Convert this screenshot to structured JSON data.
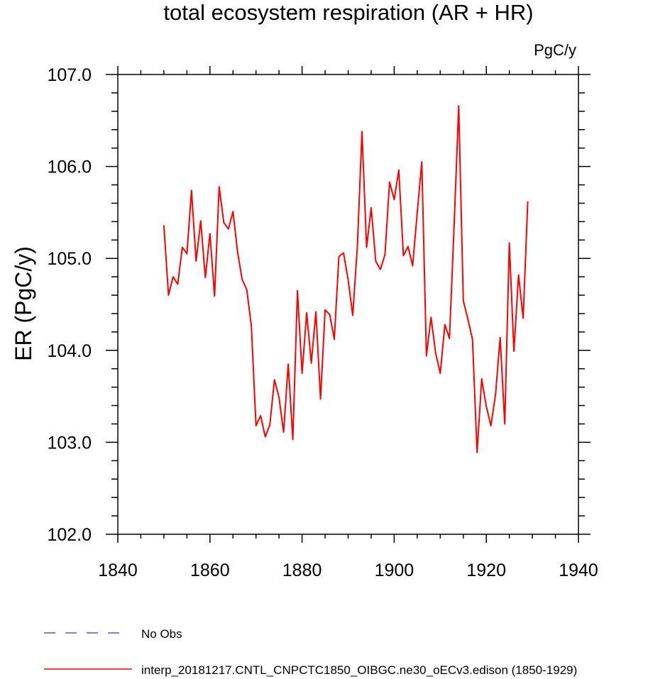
{
  "chart_data": {
    "type": "line",
    "title": "total ecosystem respiration (AR + HR)",
    "units_label": "PgC/y",
    "xlabel": "",
    "ylabel": "ER  (PgC/y)",
    "xlim": [
      1840,
      1940
    ],
    "ylim": [
      102.0,
      107.0
    ],
    "x_ticks": [
      1840,
      1860,
      1880,
      1900,
      1920,
      1940
    ],
    "x_tick_labels": [
      "1840",
      "1860",
      "1880",
      "1900",
      "1920",
      "1940"
    ],
    "y_ticks": [
      102.0,
      103.0,
      104.0,
      105.0,
      106.0,
      107.0
    ],
    "y_tick_labels": [
      "102.0",
      "103.0",
      "104.0",
      "105.0",
      "106.0",
      "107.0"
    ],
    "grid": false,
    "legend_position": "bottom-left",
    "series": [
      {
        "name": "interp_20181217.CNTL_CNPCTC1850_OIBGC.ne30_oECv3.edison (1850-1929)",
        "color": "#ff0000",
        "style": "solid",
        "x": [
          1850,
          1851,
          1852,
          1853,
          1854,
          1855,
          1856,
          1857,
          1858,
          1859,
          1860,
          1861,
          1862,
          1863,
          1864,
          1865,
          1866,
          1867,
          1868,
          1869,
          1870,
          1871,
          1872,
          1873,
          1874,
          1875,
          1876,
          1877,
          1878,
          1879,
          1880,
          1881,
          1882,
          1883,
          1884,
          1885,
          1886,
          1887,
          1888,
          1889,
          1890,
          1891,
          1892,
          1893,
          1894,
          1895,
          1896,
          1897,
          1898,
          1899,
          1900,
          1901,
          1902,
          1903,
          1904,
          1905,
          1906,
          1907,
          1908,
          1909,
          1910,
          1911,
          1912,
          1913,
          1914,
          1915,
          1916,
          1917,
          1918,
          1919,
          1920,
          1921,
          1922,
          1923,
          1924,
          1925,
          1926,
          1927,
          1928,
          1929
        ],
        "values": [
          105.36,
          104.6,
          104.8,
          104.72,
          105.12,
          105.05,
          105.74,
          104.97,
          105.41,
          104.79,
          105.27,
          104.59,
          105.78,
          105.39,
          105.32,
          105.51,
          105.07,
          104.77,
          104.66,
          104.26,
          103.18,
          103.29,
          103.06,
          103.19,
          103.68,
          103.49,
          103.11,
          103.85,
          103.03,
          104.65,
          103.75,
          104.41,
          103.86,
          104.42,
          103.47,
          104.44,
          104.39,
          104.12,
          105.02,
          105.06,
          104.77,
          104.38,
          105.13,
          106.38,
          105.12,
          105.55,
          104.97,
          104.88,
          105.04,
          105.83,
          105.64,
          105.96,
          105.03,
          105.13,
          104.92,
          105.5,
          106.05,
          103.94,
          104.36,
          103.97,
          103.75,
          104.28,
          104.13,
          105.35,
          106.66,
          104.54,
          104.34,
          104.12,
          102.89,
          103.69,
          103.39,
          103.18,
          103.52,
          104.14,
          103.2,
          105.17,
          103.99,
          104.82,
          104.35,
          105.62
        ]
      },
      {
        "name": "No Obs",
        "color": "#0000cc",
        "style": "dashed",
        "x": [],
        "values": []
      }
    ]
  }
}
